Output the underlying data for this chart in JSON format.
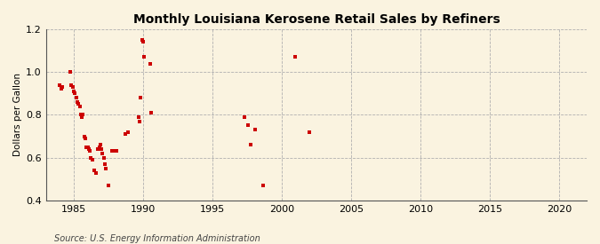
{
  "title": "Monthly Louisiana Kerosene Retail Sales by Refiners",
  "ylabel": "Dollars per Gallon",
  "xlabel": "",
  "source": "Source: U.S. Energy Information Administration",
  "background_color": "#faf3e0",
  "plot_background_color": "#faf3e0",
  "marker_color": "#cc0000",
  "marker": "s",
  "marker_size": 3.5,
  "xlim": [
    1983,
    2022
  ],
  "ylim": [
    0.4,
    1.2
  ],
  "xticks": [
    1985,
    1990,
    1995,
    2000,
    2005,
    2010,
    2015,
    2020
  ],
  "yticks": [
    0.4,
    0.6,
    0.8,
    1.0,
    1.2
  ],
  "data_x": [
    1984.0,
    1984.08,
    1984.17,
    1984.75,
    1984.83,
    1984.92,
    1985.0,
    1985.08,
    1985.17,
    1985.25,
    1985.33,
    1985.42,
    1985.5,
    1985.58,
    1985.67,
    1985.75,
    1985.83,
    1985.92,
    1986.0,
    1986.08,
    1986.17,
    1986.25,
    1986.33,
    1986.5,
    1986.58,
    1986.75,
    1986.83,
    1986.92,
    1987.0,
    1987.08,
    1987.17,
    1987.25,
    1987.33,
    1987.5,
    1987.75,
    1987.92,
    1988.08,
    1988.75,
    1988.92,
    1989.67,
    1989.75,
    1989.83,
    1989.92,
    1990.0,
    1990.08,
    1990.5,
    1990.58,
    1997.33,
    1997.58,
    1997.75,
    1998.08,
    1998.67,
    2001.0,
    2002.0
  ],
  "data_y": [
    0.94,
    0.92,
    0.93,
    1.0,
    0.94,
    0.93,
    0.91,
    0.9,
    0.88,
    0.86,
    0.85,
    0.84,
    0.8,
    0.79,
    0.8,
    0.7,
    0.69,
    0.65,
    0.65,
    0.64,
    0.63,
    0.6,
    0.59,
    0.54,
    0.53,
    0.64,
    0.65,
    0.66,
    0.64,
    0.62,
    0.6,
    0.57,
    0.55,
    0.47,
    0.63,
    0.63,
    0.63,
    0.71,
    0.72,
    0.79,
    0.77,
    0.88,
    1.15,
    1.14,
    1.07,
    1.04,
    0.81,
    0.79,
    0.75,
    0.66,
    0.73,
    0.47,
    1.07,
    0.72
  ]
}
